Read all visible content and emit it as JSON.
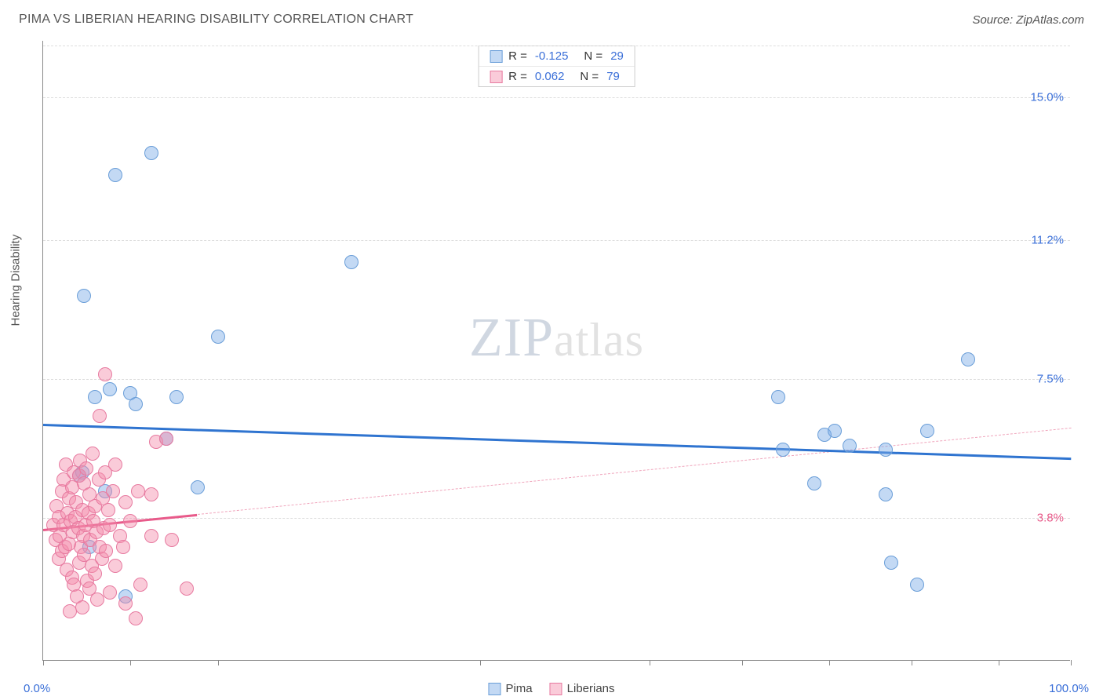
{
  "title": "PIMA VS LIBERIAN HEARING DISABILITY CORRELATION CHART",
  "source": "Source: ZipAtlas.com",
  "y_axis_label": "Hearing Disability",
  "watermark": {
    "part1": "ZIP",
    "part2": "atlas"
  },
  "chart": {
    "type": "scatter",
    "xlim": [
      0,
      100
    ],
    "ylim": [
      0,
      16.5
    ],
    "x_min_label": "0.0%",
    "x_max_label": "100.0%",
    "x_label_color": "#3a6fd8",
    "y_ticks": [
      {
        "v": 3.8,
        "label": "3.8%",
        "color": "#e85a8a"
      },
      {
        "v": 7.5,
        "label": "7.5%",
        "color": "#3a6fd8"
      },
      {
        "v": 11.2,
        "label": "11.2%",
        "color": "#3a6fd8"
      },
      {
        "v": 15.0,
        "label": "15.0%",
        "color": "#3a6fd8"
      }
    ],
    "x_ticks_percent": [
      0,
      8.5,
      17,
      42.5,
      59,
      68,
      76.5,
      84.5,
      93,
      100
    ],
    "background_color": "#ffffff",
    "grid_color": "#dddddd",
    "series": [
      {
        "name": "Pima",
        "fill": "rgba(122,170,230,0.45)",
        "stroke": "#6a9ed8",
        "radius": 9,
        "R": "-0.125",
        "N": "29",
        "trend": {
          "x1": 0,
          "y1": 6.3,
          "x2": 100,
          "y2": 5.4,
          "color": "#2f74d0",
          "width": 3,
          "dash": "none"
        },
        "points": [
          [
            3.5,
            4.9
          ],
          [
            3.8,
            5.0
          ],
          [
            4.0,
            9.7
          ],
          [
            4.5,
            3.0
          ],
          [
            5.0,
            7.0
          ],
          [
            6.0,
            4.5
          ],
          [
            6.5,
            7.2
          ],
          [
            7.0,
            12.9
          ],
          [
            8.0,
            1.7
          ],
          [
            8.5,
            7.1
          ],
          [
            9.0,
            6.8
          ],
          [
            10.5,
            13.5
          ],
          [
            12.0,
            5.9
          ],
          [
            13.0,
            7.0
          ],
          [
            15.0,
            4.6
          ],
          [
            17.0,
            8.6
          ],
          [
            30.0,
            10.6
          ],
          [
            71.5,
            7.0
          ],
          [
            72.0,
            5.6
          ],
          [
            75.0,
            4.7
          ],
          [
            76.0,
            6.0
          ],
          [
            77.0,
            6.1
          ],
          [
            78.5,
            5.7
          ],
          [
            82.0,
            5.6
          ],
          [
            82.0,
            4.4
          ],
          [
            82.5,
            2.6
          ],
          [
            85.0,
            2.0
          ],
          [
            86.0,
            6.1
          ],
          [
            90.0,
            8.0
          ]
        ]
      },
      {
        "name": "Liberians",
        "fill": "rgba(245,140,170,0.45)",
        "stroke": "#e77aa0",
        "radius": 9,
        "R": "0.062",
        "N": "79",
        "trend_solid": {
          "x1": 0,
          "y1": 3.5,
          "x2": 15,
          "y2": 3.9,
          "color": "#e85a8a",
          "width": 3,
          "dash": "none"
        },
        "trend_dashed": {
          "x1": 15,
          "y1": 3.9,
          "x2": 100,
          "y2": 6.2,
          "color": "#f0a5bc",
          "width": 1.5,
          "dash": "6 5"
        },
        "points": [
          [
            1.0,
            3.6
          ],
          [
            1.2,
            3.2
          ],
          [
            1.3,
            4.1
          ],
          [
            1.5,
            2.7
          ],
          [
            1.5,
            3.8
          ],
          [
            1.6,
            3.3
          ],
          [
            1.8,
            4.5
          ],
          [
            1.8,
            2.9
          ],
          [
            2.0,
            3.6
          ],
          [
            2.0,
            4.8
          ],
          [
            2.1,
            3.0
          ],
          [
            2.2,
            5.2
          ],
          [
            2.3,
            2.4
          ],
          [
            2.4,
            3.9
          ],
          [
            2.5,
            4.3
          ],
          [
            2.5,
            3.1
          ],
          [
            2.6,
            1.3
          ],
          [
            2.7,
            3.7
          ],
          [
            2.8,
            2.2
          ],
          [
            2.8,
            4.6
          ],
          [
            2.9,
            3.4
          ],
          [
            3.0,
            5.0
          ],
          [
            3.0,
            2.0
          ],
          [
            3.1,
            3.8
          ],
          [
            3.2,
            4.2
          ],
          [
            3.3,
            1.7
          ],
          [
            3.4,
            3.5
          ],
          [
            3.5,
            4.9
          ],
          [
            3.5,
            2.6
          ],
          [
            3.6,
            5.3
          ],
          [
            3.7,
            3.0
          ],
          [
            3.8,
            4.0
          ],
          [
            3.8,
            1.4
          ],
          [
            3.9,
            3.3
          ],
          [
            4.0,
            2.8
          ],
          [
            4.0,
            4.7
          ],
          [
            4.1,
            3.6
          ],
          [
            4.2,
            5.1
          ],
          [
            4.3,
            2.1
          ],
          [
            4.4,
            3.9
          ],
          [
            4.5,
            1.9
          ],
          [
            4.5,
            4.4
          ],
          [
            4.6,
            3.2
          ],
          [
            4.7,
            2.5
          ],
          [
            4.8,
            5.5
          ],
          [
            4.9,
            3.7
          ],
          [
            5.0,
            4.1
          ],
          [
            5.0,
            2.3
          ],
          [
            5.2,
            3.4
          ],
          [
            5.3,
            1.6
          ],
          [
            5.4,
            4.8
          ],
          [
            5.5,
            3.0
          ],
          [
            5.5,
            6.5
          ],
          [
            5.7,
            2.7
          ],
          [
            5.8,
            4.3
          ],
          [
            5.9,
            3.5
          ],
          [
            6.0,
            5.0
          ],
          [
            6.0,
            7.6
          ],
          [
            6.1,
            2.9
          ],
          [
            6.3,
            4.0
          ],
          [
            6.5,
            1.8
          ],
          [
            6.5,
            3.6
          ],
          [
            6.8,
            4.5
          ],
          [
            7.0,
            2.5
          ],
          [
            7.0,
            5.2
          ],
          [
            7.5,
            3.3
          ],
          [
            7.8,
            3.0
          ],
          [
            8.0,
            1.5
          ],
          [
            8.0,
            4.2
          ],
          [
            8.5,
            3.7
          ],
          [
            9.0,
            1.1
          ],
          [
            9.2,
            4.5
          ],
          [
            9.5,
            2.0
          ],
          [
            10.5,
            3.3
          ],
          [
            10.5,
            4.4
          ],
          [
            11.0,
            5.8
          ],
          [
            12.0,
            5.9
          ],
          [
            12.5,
            3.2
          ],
          [
            14.0,
            1.9
          ]
        ]
      }
    ]
  },
  "legend_top": [
    {
      "swatch_fill": "rgba(122,170,230,0.45)",
      "swatch_stroke": "#6a9ed8",
      "R": "-0.125",
      "N": "29",
      "val_color": "#3a6fd8"
    },
    {
      "swatch_fill": "rgba(245,140,170,0.45)",
      "swatch_stroke": "#e77aa0",
      "R": "0.062",
      "N": "79",
      "val_color": "#3a6fd8"
    }
  ],
  "legend_bottom": [
    {
      "label": "Pima",
      "fill": "rgba(122,170,230,0.45)",
      "stroke": "#6a9ed8"
    },
    {
      "label": "Liberians",
      "fill": "rgba(245,140,170,0.45)",
      "stroke": "#e77aa0"
    }
  ]
}
